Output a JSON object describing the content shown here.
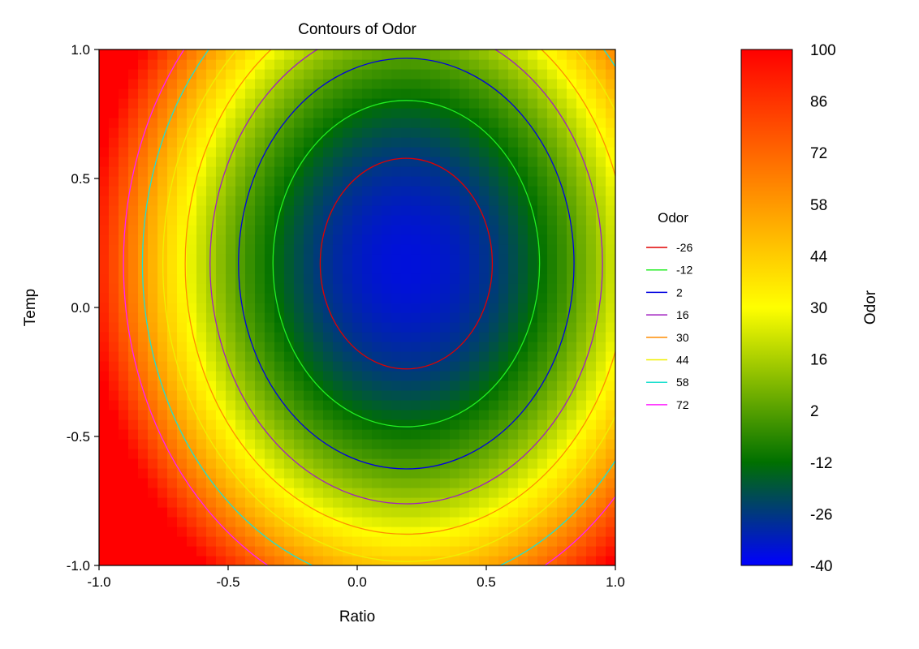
{
  "chart_data": {
    "type": "heatmap",
    "subtype": "contour",
    "title": "Contours of Odor",
    "xlabel": "Ratio",
    "ylabel": "Temp",
    "xlim": [
      -1.0,
      1.0
    ],
    "ylim": [
      -1.0,
      1.0
    ],
    "x_ticks": [
      "-1.0",
      "-0.5",
      "0.0",
      "0.5",
      "1.0"
    ],
    "y_ticks": [
      "-1.0",
      "-0.5",
      "0.0",
      "0.5",
      "1.0"
    ],
    "surface": {
      "min": {
        "ratio": 0.19,
        "temp": 0.17,
        "odor": -36
      },
      "quadratic_coefficients": {
        "ratio": 90,
        "temp": 60
      }
    },
    "grid": false,
    "legend": {
      "title": "Odor",
      "placement": "right",
      "items": [
        {
          "label": "-26",
          "color": "#e00000"
        },
        {
          "label": "-12",
          "color": "#22ee22"
        },
        {
          "label": "2",
          "color": "#0000e0"
        },
        {
          "label": "16",
          "color": "#a020c0"
        },
        {
          "label": "30",
          "color": "#ff8c00"
        },
        {
          "label": "44",
          "color": "#f0f000"
        },
        {
          "label": "58",
          "color": "#20e0d0"
        },
        {
          "label": "72",
          "color": "#ff20ff"
        }
      ]
    },
    "colorbar": {
      "label": "Odor",
      "ticks": [
        "100",
        "86",
        "72",
        "58",
        "44",
        "30",
        "16",
        "2",
        "-12",
        "-26",
        "-40"
      ],
      "range": [
        -40,
        100
      ],
      "colors": [
        {
          "value": -40,
          "color": "#0000ff"
        },
        {
          "value": -12,
          "color": "#007000"
        },
        {
          "value": 30,
          "color": "#ffff00"
        },
        {
          "value": 100,
          "color": "#ff0000"
        }
      ]
    }
  }
}
